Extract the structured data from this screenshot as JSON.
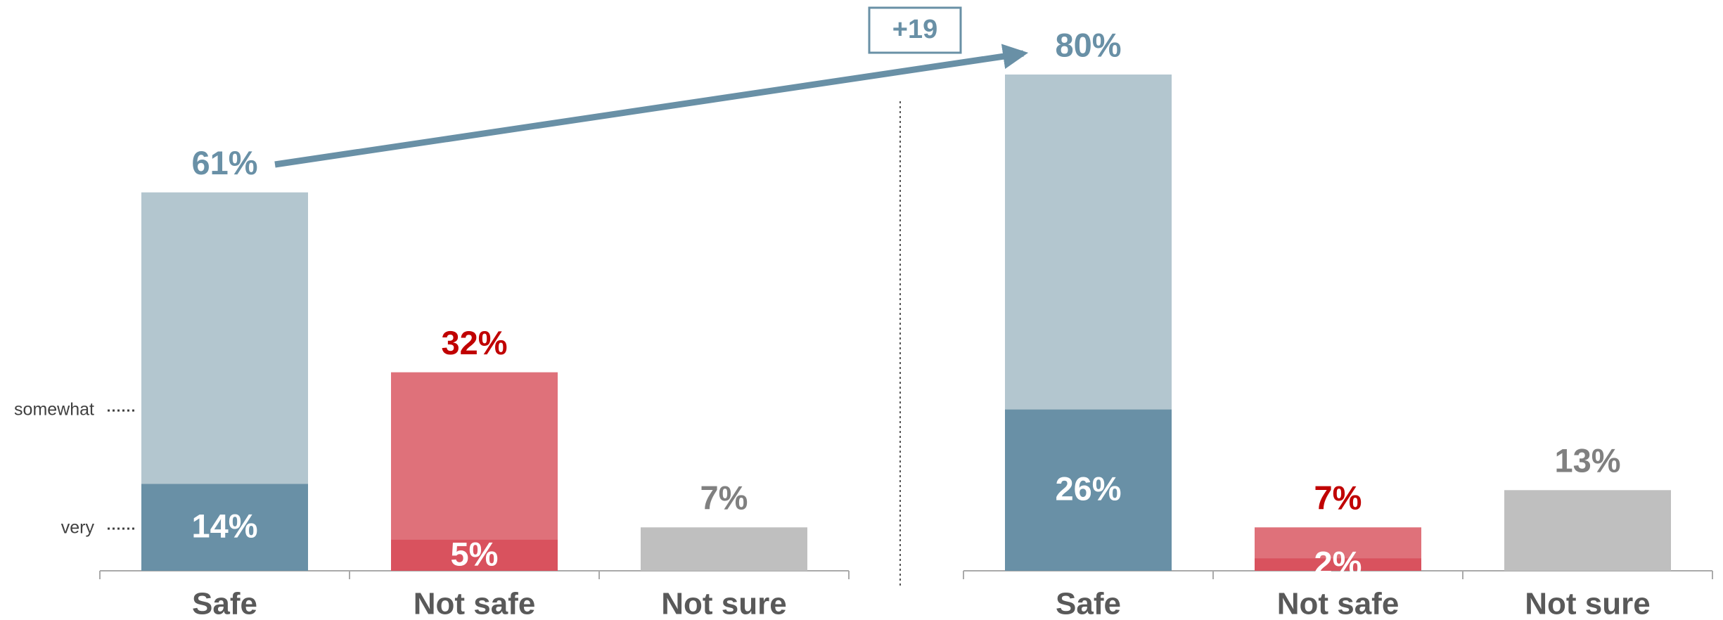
{
  "chart_data": [
    {
      "type": "bar",
      "categories": [
        "Safe",
        "Not safe",
        "Not sure"
      ],
      "totals": [
        61,
        32,
        7
      ],
      "total_labels": [
        "61%",
        "32%",
        "7%"
      ],
      "very": [
        14,
        5,
        null
      ],
      "very_labels": [
        "14%",
        "5%",
        null
      ],
      "segment_labels": [
        "somewhat",
        "very"
      ],
      "light_colors": [
        "#b3c6cf",
        "#df717a",
        "#bfbfbf"
      ],
      "dark_colors": [
        "#6990a6",
        "#d9525e",
        null
      ],
      "label_colors": [
        "#6990a6",
        "#c00000",
        "#808080"
      ],
      "ylim": [
        0,
        80
      ]
    },
    {
      "type": "bar",
      "categories": [
        "Safe",
        "Not safe",
        "Not sure"
      ],
      "totals": [
        80,
        7,
        13
      ],
      "total_labels": [
        "80%",
        "7%",
        "13%"
      ],
      "very": [
        26,
        2,
        null
      ],
      "very_labels": [
        "26%",
        "2%",
        null
      ],
      "light_colors": [
        "#b3c6cf",
        "#df717a",
        "#bfbfbf"
      ],
      "dark_colors": [
        "#6990a6",
        "#d9525e",
        null
      ],
      "label_colors": [
        "#6990a6",
        "#c00000",
        "#808080"
      ],
      "ylim": [
        0,
        80
      ]
    }
  ],
  "annotation": {
    "text": "+19"
  }
}
